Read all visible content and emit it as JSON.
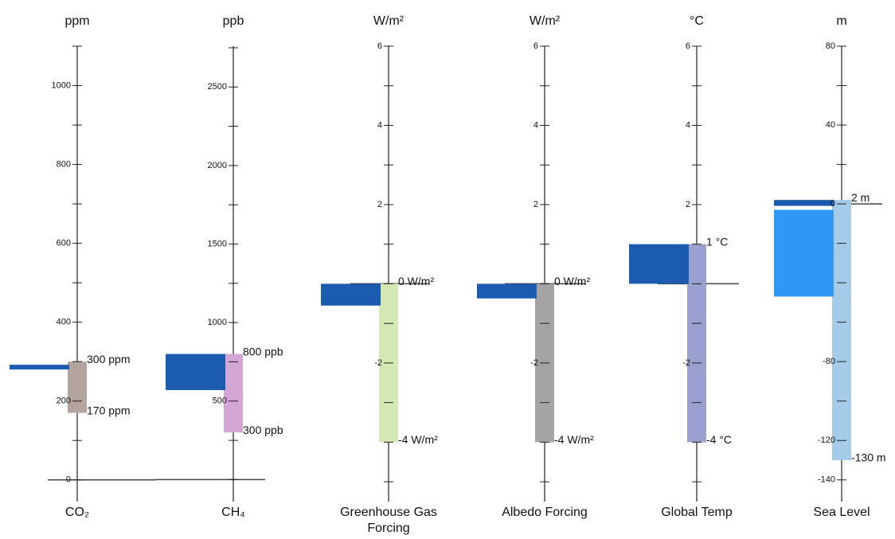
{
  "chart_data": [
    {
      "type": "range",
      "unit": "ppm",
      "name": "CO₂",
      "ylim": [
        -55,
        1100
      ],
      "yticks": [
        0,
        200,
        400,
        600,
        800,
        1000
      ],
      "minor_yticks": [
        100,
        300,
        500,
        700,
        900,
        1100
      ],
      "range": {
        "values": [
          170,
          300
        ],
        "value_labels": [
          "170 ppm",
          "300 ppm"
        ],
        "color": "#b4a4a0"
      },
      "bars": [
        {
          "values": [
            280,
            292
          ],
          "color": "#1c5cb0"
        }
      ]
    },
    {
      "type": "range",
      "unit": "ppb",
      "name": "CH₄",
      "ylim": [
        -140,
        2760
      ],
      "yticks": [
        500,
        1000,
        1500,
        2000,
        2500
      ],
      "minor_yticks": [
        0,
        250,
        750,
        1250,
        1750,
        2250,
        2750
      ],
      "range": {
        "values": [
          300,
          800
        ],
        "value_labels": [
          "300 ppb",
          "800 ppb"
        ],
        "color": "#d4a6d6"
      },
      "bars": [
        {
          "values": [
            570,
            800
          ],
          "color": "#1c5cb0"
        }
      ]
    },
    {
      "type": "range",
      "unit": "W/m²",
      "name": "Greenhouse Gas Forcing",
      "ylim": [
        -5.5,
        6
      ],
      "yticks": [
        -2,
        2,
        4,
        6
      ],
      "minor_yticks": [
        -5,
        -4,
        -3,
        -1,
        0,
        1,
        3,
        5
      ],
      "range": {
        "values": [
          -4,
          0
        ],
        "value_labels": [
          "-4 W/m²",
          "0 W/m²"
        ],
        "color": "#d4e8b4"
      },
      "bars": [
        {
          "values": [
            -0.55,
            0
          ],
          "color": "#1c5cb0"
        }
      ]
    },
    {
      "type": "range",
      "unit": "W/m²",
      "name": "Albedo Forcing",
      "ylim": [
        -5.5,
        6
      ],
      "yticks": [
        -2,
        2,
        4,
        6
      ],
      "minor_yticks": [
        -5,
        -4,
        -3,
        -1,
        0,
        1,
        3,
        5
      ],
      "range": {
        "values": [
          -4,
          0
        ],
        "value_labels": [
          "-4 W/m²",
          "0 W/m²"
        ],
        "color": "#a4a4a4"
      },
      "bars": [
        {
          "values": [
            -0.37,
            0
          ],
          "color": "#1c5cb0"
        }
      ]
    },
    {
      "type": "range",
      "unit": "°C",
      "name": "Global Temp",
      "ylim": [
        -5.5,
        6
      ],
      "yticks": [
        -2,
        2,
        4,
        6
      ],
      "minor_yticks": [
        -5,
        -4,
        -3,
        -1,
        0,
        1,
        3,
        5
      ],
      "range": {
        "values": [
          -4,
          1
        ],
        "value_labels": [
          "-4 °C",
          "1 °C"
        ],
        "color": "#9aa0d0"
      },
      "bars": [
        {
          "values": [
            0,
            1
          ],
          "color": "#1c5cb0"
        }
      ]
    },
    {
      "type": "range",
      "unit": "m",
      "name": "Sea Level",
      "ylim": [
        -151,
        80
      ],
      "yticks": [
        -140,
        -120,
        -80,
        0,
        40,
        80
      ],
      "minor_yticks": [
        -100,
        -60,
        -40,
        -20,
        20,
        60
      ],
      "range": {
        "values": [
          -130,
          2
        ],
        "value_labels": [
          "-130 m",
          "2 m"
        ],
        "color": "#a4cce8"
      },
      "bars": [
        {
          "values": [
            -1,
            2
          ],
          "color": "#1c5cb0"
        },
        {
          "values": [
            -47,
            -3
          ],
          "color": "#2e98f4"
        }
      ]
    }
  ]
}
